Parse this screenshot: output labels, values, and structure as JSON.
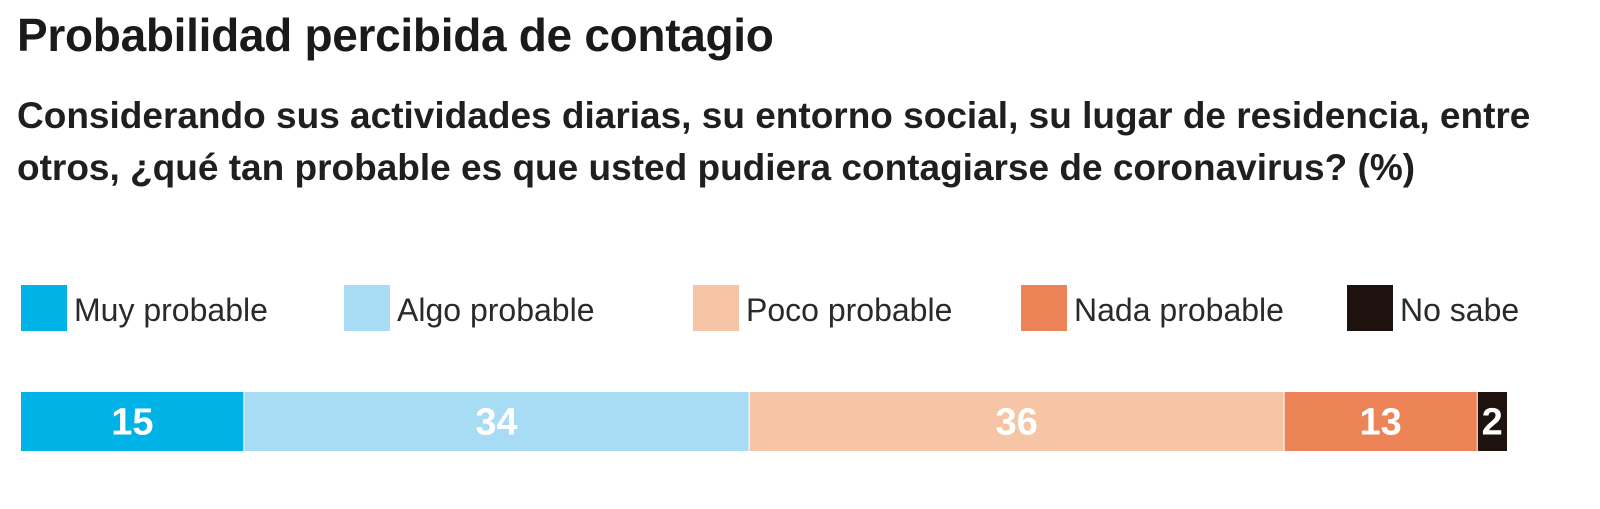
{
  "header": {
    "title": "Probabilidad percibida de contagio",
    "subtitle": "Considerando sus actividades diarias, su entorno social, su lugar de residencia, entre otros, ¿qué tan probable es que usted pudiera contagiarse de coronavirus?  (%)"
  },
  "legend": {
    "items": [
      {
        "label": "Muy probable",
        "color": "#00b3e6"
      },
      {
        "label": "Algo probable",
        "color": "#a8dcf5"
      },
      {
        "label": "Poco probable",
        "color": "#f5c5a5"
      },
      {
        "label": "Nada probable",
        "color": "#ec8457"
      },
      {
        "label": "No sabe",
        "color": "#1e120e"
      }
    ]
  },
  "chart_data": {
    "type": "bar",
    "orientation": "horizontal-stacked",
    "title": "Probabilidad percibida de contagio",
    "subtitle": "Considerando sus actividades diarias, su entorno social, su lugar de residencia, entre otros, ¿qué tan probable es que usted pudiera contagiarse de coronavirus?  (%)",
    "unit": "%",
    "categories": [
      "Muy probable",
      "Algo probable",
      "Poco probable",
      "Nada probable",
      "No sabe"
    ],
    "values": [
      15,
      34,
      36,
      13,
      2
    ],
    "colors": [
      "#00b3e6",
      "#a8dcf5",
      "#f5c5a5",
      "#ec8457",
      "#1e120e"
    ],
    "legend_position": "top",
    "grid": false
  }
}
